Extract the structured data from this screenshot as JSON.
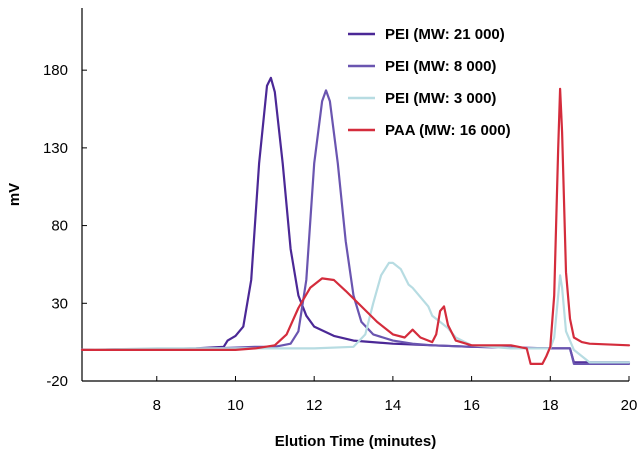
{
  "chart_data": {
    "type": "line",
    "title": "",
    "xlabel": "Elution Time (minutes)",
    "ylabel": "mV",
    "xlim": [
      6.1,
      20
    ],
    "ylim": [
      -20,
      220
    ],
    "x_ticks": [
      8,
      10,
      12,
      14,
      16,
      18,
      20
    ],
    "y_ticks": [
      -20,
      30,
      80,
      130,
      180
    ],
    "grid": false,
    "legend_position": "top-right",
    "series": [
      {
        "name": "PEI (MW: 21 000)",
        "color": "#4b2896",
        "x": [
          6.1,
          8.0,
          9.0,
          9.7,
          9.8,
          10.0,
          10.2,
          10.4,
          10.6,
          10.8,
          10.9,
          11.0,
          11.2,
          11.4,
          11.6,
          11.8,
          12.0,
          12.5,
          13.0,
          14.0,
          15.0,
          16.0,
          17.0,
          18.0,
          18.5,
          18.6,
          19.0,
          20.0
        ],
        "y": [
          0,
          0.5,
          1,
          2,
          6,
          9,
          15,
          45,
          120,
          170,
          175,
          166,
          120,
          65,
          35,
          22,
          15,
          9,
          6,
          4,
          3,
          2,
          1.5,
          1,
          1,
          -8,
          -8,
          -8
        ]
      },
      {
        "name": "PEI (MW: 8 000)",
        "color": "#6a55b0",
        "x": [
          6.1,
          9.5,
          10.5,
          11.0,
          11.4,
          11.6,
          11.8,
          12.0,
          12.2,
          12.3,
          12.4,
          12.6,
          12.8,
          13.0,
          13.2,
          13.5,
          14.0,
          14.5,
          15.0,
          16.0,
          17.0,
          18.0,
          18.5,
          18.6,
          19.0,
          20.0
        ],
        "y": [
          0,
          1,
          2,
          2,
          4,
          12,
          45,
          120,
          160,
          167,
          160,
          120,
          70,
          35,
          18,
          10,
          6,
          4,
          3,
          2,
          1.5,
          1,
          1,
          -9,
          -9,
          -9
        ]
      },
      {
        "name": "PEI (MW: 3 000)",
        "color": "#b7dce2",
        "x": [
          6.1,
          8.0,
          10.0,
          12.0,
          13.0,
          13.3,
          13.5,
          13.7,
          13.9,
          14.0,
          14.2,
          14.4,
          14.5,
          14.7,
          14.9,
          15.0,
          15.2,
          15.4,
          15.6,
          16.0,
          17.0,
          18.0,
          18.1,
          18.2,
          18.25,
          18.3,
          18.4,
          18.6,
          19.0,
          20.0
        ],
        "y": [
          0,
          1,
          1,
          1,
          2,
          10,
          30,
          48,
          56,
          56,
          52,
          42,
          40,
          34,
          28,
          22,
          18,
          14,
          8,
          3,
          1,
          1,
          8,
          35,
          48,
          40,
          12,
          0,
          -8,
          -8
        ]
      },
      {
        "name": "PAA (MW: 16 000)",
        "color": "#d42c3c",
        "x": [
          6.1,
          8.0,
          10.0,
          10.5,
          11.0,
          11.3,
          11.6,
          11.9,
          12.2,
          12.5,
          12.8,
          13.2,
          13.6,
          14.0,
          14.3,
          14.5,
          14.7,
          15.0,
          15.1,
          15.2,
          15.3,
          15.4,
          15.6,
          16.0,
          16.5,
          17.0,
          17.4,
          17.5,
          17.8,
          17.9,
          18.0,
          18.1,
          18.2,
          18.25,
          18.3,
          18.4,
          18.5,
          18.6,
          18.8,
          19.0,
          20.0
        ],
        "y": [
          0,
          0,
          0,
          1,
          3,
          10,
          27,
          40,
          46,
          45,
          38,
          28,
          18,
          10,
          8,
          13,
          8,
          5,
          10,
          25,
          28,
          16,
          6,
          3,
          3,
          3,
          1,
          -9,
          -9,
          -4,
          2,
          35,
          130,
          168,
          140,
          50,
          20,
          8,
          5,
          4,
          3
        ]
      }
    ]
  }
}
